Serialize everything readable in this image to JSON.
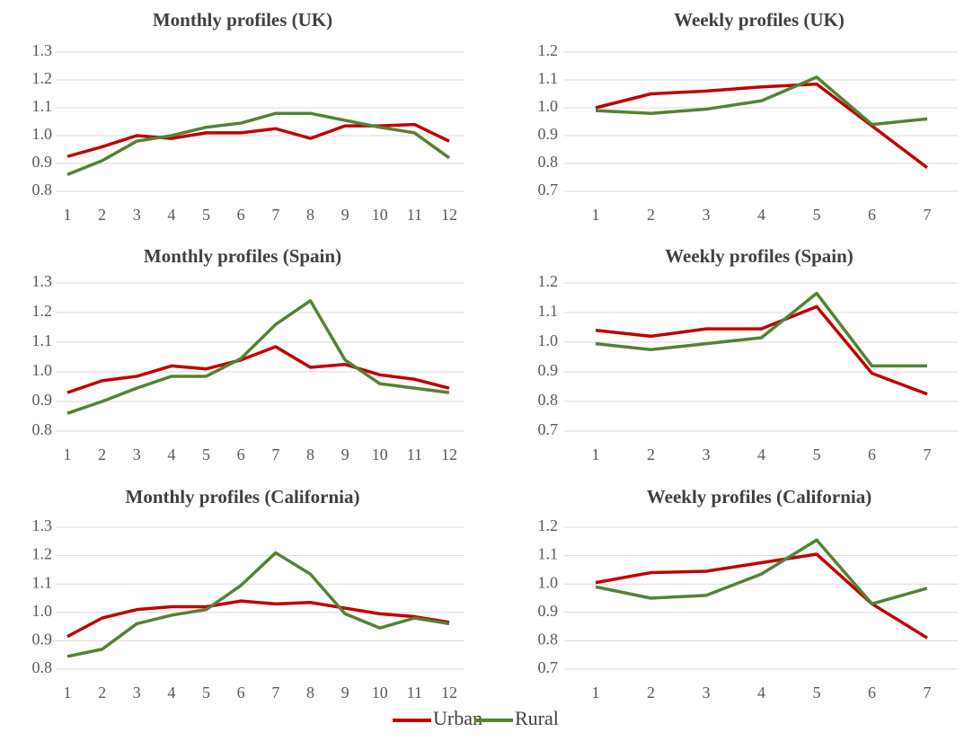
{
  "chart_data": [
    {
      "type": "line",
      "title": "Monthly profiles (UK)",
      "categories": [
        "1",
        "2",
        "3",
        "4",
        "5",
        "6",
        "7",
        "8",
        "9",
        "10",
        "11",
        "12"
      ],
      "series": [
        {
          "name": "Urban",
          "color": "#c00000",
          "values": [
            0.925,
            0.96,
            1.0,
            0.99,
            1.01,
            1.01,
            1.025,
            0.99,
            1.035,
            1.035,
            1.04,
            0.98
          ]
        },
        {
          "name": "Rural",
          "color": "#548235",
          "values": [
            0.86,
            0.91,
            0.98,
            1.0,
            1.03,
            1.045,
            1.08,
            1.08,
            1.055,
            1.03,
            1.01,
            0.92
          ]
        }
      ],
      "ylim": [
        0.8,
        1.3
      ],
      "yticks": [
        0.8,
        0.9,
        {
          "value": 1,
          "label": "1.0"
        },
        1.1,
        1.2,
        1.3
      ],
      "grid": true
    },
    {
      "type": "line",
      "title": "Weekly profiles (UK)",
      "categories": [
        "1",
        "2",
        "3",
        "4",
        "5",
        "6",
        "7"
      ],
      "series": [
        {
          "color": "#c00000",
          "values": [
            1.0,
            1.05,
            1.06,
            1.075,
            1.085,
            0.935,
            0.785
          ]
        },
        {
          "color": "#548235",
          "values": [
            0.99,
            0.98,
            0.995,
            1.025,
            1.11,
            0.94,
            0.96
          ]
        }
      ],
      "ylim": [
        0.7,
        1.2
      ],
      "yticks": [
        0.7,
        0.8,
        0.9,
        {
          "value": 1,
          "label": "1.0"
        },
        1.1,
        1.2
      ],
      "grid": true
    },
    {
      "type": "line",
      "title": "Monthly profiles (Spain)",
      "categories": [
        "1",
        "2",
        "3",
        "4",
        "5",
        "6",
        "7",
        "8",
        "9",
        "10",
        "11",
        "12"
      ],
      "series": [
        {
          "color": "#c00000",
          "values": [
            0.93,
            0.97,
            0.985,
            1.02,
            1.01,
            1.04,
            1.085,
            1.015,
            1.025,
            0.99,
            0.975,
            0.945
          ]
        },
        {
          "color": "#548235",
          "values": [
            0.86,
            0.9,
            0.945,
            0.985,
            0.985,
            1.045,
            1.16,
            1.24,
            1.04,
            0.96,
            0.945,
            0.93
          ]
        }
      ],
      "ylim": [
        0.8,
        1.3
      ],
      "yticks": [
        0.8,
        0.9,
        {
          "value": 1,
          "label": "1.0"
        },
        1.1,
        1.2,
        1.3
      ],
      "grid": true
    },
    {
      "type": "line",
      "title": "Weekly profiles (Spain)",
      "categories": [
        "1",
        "2",
        "3",
        "4",
        "5",
        "6",
        "7"
      ],
      "series": [
        {
          "color": "#c00000",
          "values": [
            1.04,
            1.02,
            1.045,
            1.045,
            1.12,
            0.895,
            0.825
          ]
        },
        {
          "color": "#548235",
          "values": [
            0.995,
            0.975,
            0.995,
            1.015,
            1.165,
            0.92,
            0.92
          ]
        }
      ],
      "ylim": [
        0.7,
        1.2
      ],
      "yticks": [
        0.7,
        0.8,
        0.9,
        {
          "value": 1,
          "label": "1.0"
        },
        1.1,
        1.2
      ],
      "grid": true
    },
    {
      "type": "line",
      "title": "Monthly profiles (California)",
      "categories": [
        "1",
        "2",
        "3",
        "4",
        "5",
        "6",
        "7",
        "8",
        "9",
        "10",
        "11",
        "12"
      ],
      "series": [
        {
          "color": "#c00000",
          "values": [
            0.915,
            0.98,
            1.01,
            1.02,
            1.02,
            1.04,
            1.03,
            1.035,
            1.015,
            0.995,
            0.985,
            0.965
          ]
        },
        {
          "color": "#548235",
          "values": [
            0.845,
            0.87,
            0.96,
            0.99,
            1.01,
            1.095,
            1.21,
            1.135,
            0.995,
            0.945,
            0.98,
            0.96
          ]
        }
      ],
      "ylim": [
        0.8,
        1.3
      ],
      "yticks": [
        0.8,
        0.9,
        {
          "value": 1,
          "label": "1.0"
        },
        1.1,
        1.2,
        1.3
      ],
      "grid": true
    },
    {
      "type": "line",
      "title": "Weekly profiles (California)",
      "categories": [
        "1",
        "2",
        "3",
        "4",
        "5",
        "6",
        "7"
      ],
      "series": [
        {
          "color": "#c00000",
          "values": [
            1.005,
            1.04,
            1.045,
            1.075,
            1.105,
            0.93,
            0.81
          ]
        },
        {
          "color": "#548235",
          "values": [
            0.99,
            0.95,
            0.96,
            1.035,
            1.155,
            0.93,
            0.985
          ]
        }
      ],
      "ylim": [
        0.7,
        1.2
      ],
      "yticks": [
        0.7,
        0.8,
        0.9,
        {
          "value": 1,
          "label": "1.0"
        },
        1.1,
        1.2
      ],
      "grid": true
    }
  ]
}
